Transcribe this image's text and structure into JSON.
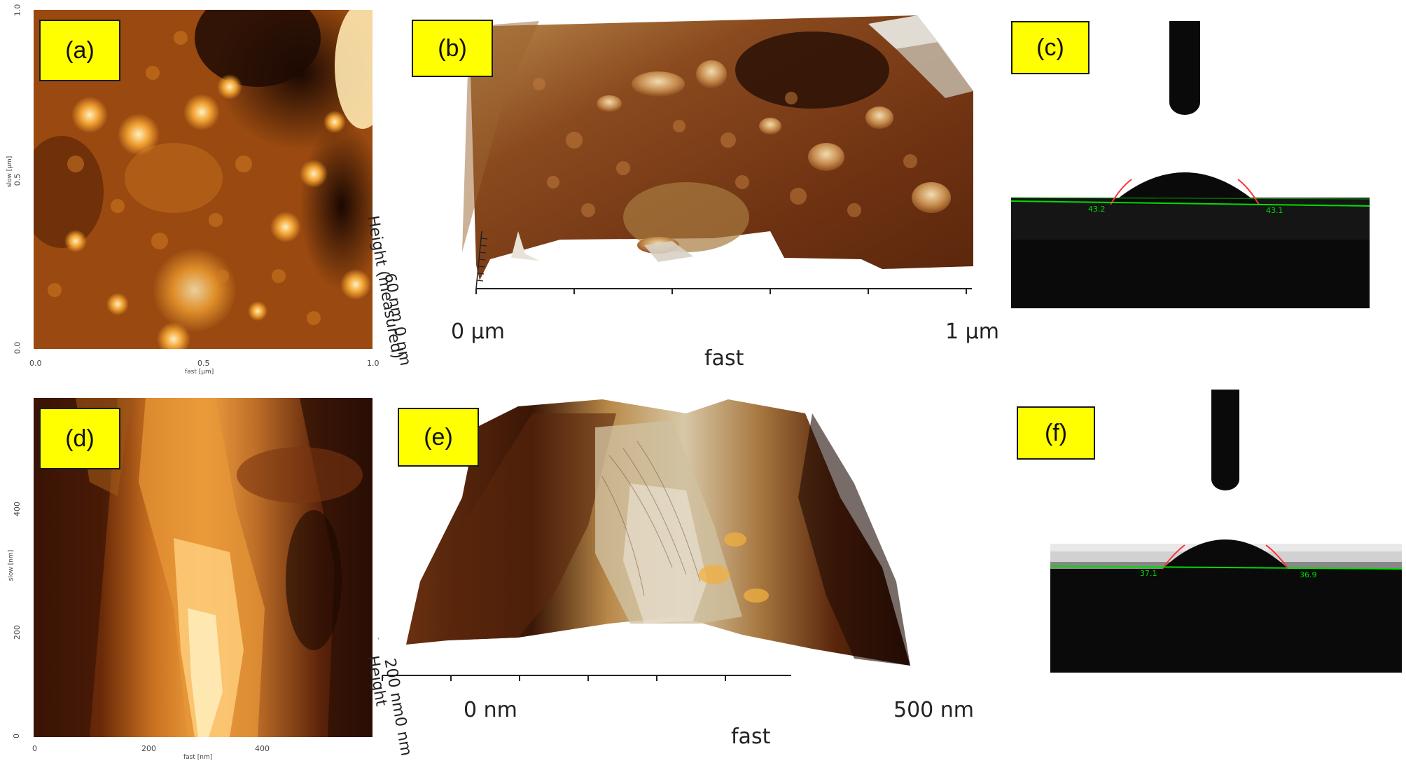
{
  "panels": {
    "a": {
      "label": "(a)",
      "y_ticks": [
        "1.0",
        "0.5",
        "0.0"
      ],
      "x_ticks": [
        "0.0",
        "0.5",
        "1.0"
      ],
      "y_axis_label": "slow [µm]",
      "x_axis_label": "fast [µm]"
    },
    "b": {
      "label": "(b)",
      "x_start": "0 µm",
      "x_end": "1 µm",
      "x_axis_label": "fast",
      "z_scale": "60 nm 0 nm",
      "z_label": "Height (measured)"
    },
    "c": {
      "label": "(c)",
      "angle_left": "43.2",
      "angle_right": "43.1"
    },
    "d": {
      "label": "(d)",
      "y_ticks": [
        "400",
        "200",
        "0"
      ],
      "x_ticks": [
        "0",
        "200",
        "400"
      ],
      "y_axis_label": "slow [nm]",
      "x_axis_label": "fast [nm]"
    },
    "e": {
      "label": "(e)",
      "x_start": "0 nm",
      "x_end": "500 nm",
      "x_axis_label": "fast",
      "z_scale": "200 nm0 nm",
      "z_label": "Height"
    },
    "f": {
      "label": "(f)",
      "angle_left": "37.1",
      "angle_right": "36.9"
    }
  },
  "colors": {
    "tag_background": "#ffff00",
    "afm_dark": "#3a1405",
    "afm_mid": "#a0500f",
    "afm_bright": "#ffe0a0",
    "baseline_green": "#00dd00",
    "fit_red": "#ff3030"
  }
}
